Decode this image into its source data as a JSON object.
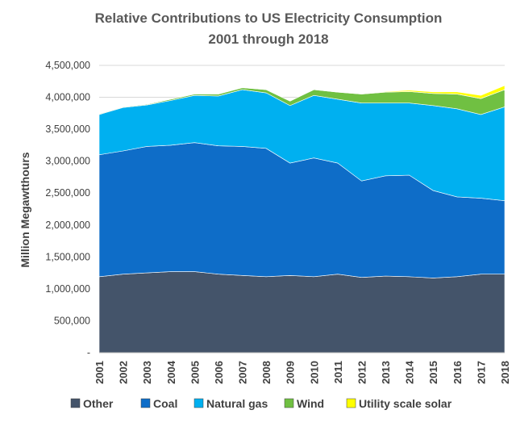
{
  "chart_data": {
    "type": "area",
    "stacked": true,
    "title": "Relative Contributions to US Electricity Consumption",
    "subtitle": "2001 through 2018",
    "xlabel": "",
    "ylabel": "Million Megawtthours",
    "ylim": [
      0,
      4500000
    ],
    "yticks": [
      "-",
      "500,000",
      "1,000,000",
      "1,500,000",
      "2,000,000",
      "2,500,000",
      "3,000,000",
      "3,500,000",
      "4,000,000",
      "4,500,000"
    ],
    "ytick_values": [
      0,
      500000,
      1000000,
      1500000,
      2000000,
      2500000,
      3000000,
      3500000,
      4000000,
      4500000
    ],
    "grid": true,
    "legend_position": "bottom",
    "x": [
      "2001",
      "2002",
      "2003",
      "2004",
      "2005",
      "2006",
      "2007",
      "2008",
      "2009",
      "2010",
      "2011",
      "2012",
      "2013",
      "2014",
      "2015",
      "2016",
      "2017",
      "2018"
    ],
    "series": [
      {
        "name": "Other",
        "color": "#44546A",
        "values": [
          1190000,
          1230000,
          1250000,
          1270000,
          1270000,
          1230000,
          1210000,
          1190000,
          1210000,
          1190000,
          1230000,
          1180000,
          1200000,
          1190000,
          1170000,
          1190000,
          1230000,
          1230000
        ]
      },
      {
        "name": "Coal",
        "color": "#0E6DC8",
        "values": [
          1910000,
          1930000,
          1980000,
          1980000,
          2020000,
          2010000,
          2020000,
          2010000,
          1760000,
          1860000,
          1740000,
          1510000,
          1570000,
          1590000,
          1370000,
          1250000,
          1190000,
          1150000
        ]
      },
      {
        "name": "Natural gas",
        "color": "#00B0F0",
        "values": [
          630000,
          680000,
          650000,
          700000,
          740000,
          780000,
          890000,
          870000,
          900000,
          980000,
          1000000,
          1220000,
          1140000,
          1130000,
          1330000,
          1380000,
          1310000,
          1470000
        ]
      },
      {
        "name": "Wind",
        "color": "#70C042",
        "values": [
          10000,
          10000,
          10000,
          20000,
          20000,
          30000,
          30000,
          50000,
          70000,
          90000,
          110000,
          140000,
          170000,
          180000,
          190000,
          230000,
          250000,
          270000
        ]
      },
      {
        "name": "Utility scale solar",
        "color": "#FFFF00",
        "values": [
          0,
          0,
          0,
          0,
          0,
          0,
          0,
          0,
          0,
          0,
          0,
          5000,
          10000,
          20000,
          25000,
          35000,
          50000,
          65000
        ]
      }
    ]
  }
}
